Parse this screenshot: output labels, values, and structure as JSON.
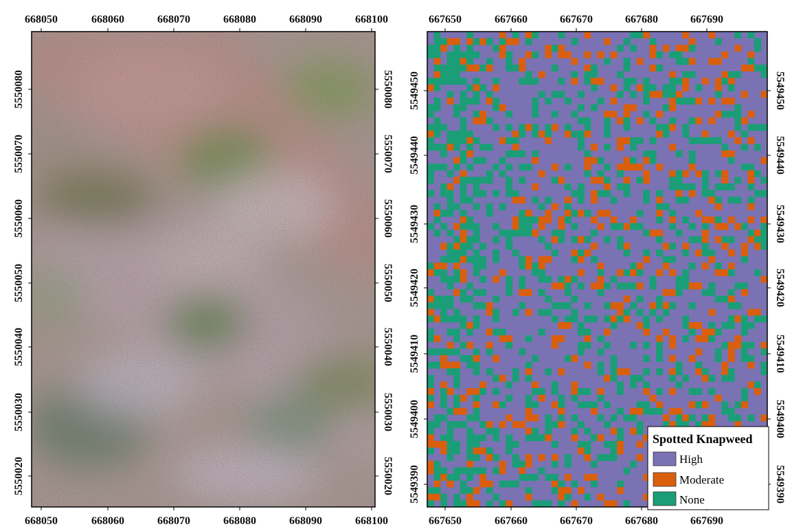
{
  "left_map": {
    "x_ticks": [
      "668050",
      "668060",
      "668070",
      "668080",
      "668090",
      "668100"
    ],
    "y_ticks": [
      "5550080",
      "5550070",
      "5550060",
      "5550050",
      "5550040",
      "5550030",
      "5550020"
    ]
  },
  "right_map": {
    "x_ticks": [
      "667650",
      "667660",
      "667670",
      "667680",
      "667690"
    ],
    "y_ticks": [
      "5549450",
      "5549440",
      "5549430",
      "5549420",
      "5549410",
      "5549400",
      "5549390"
    ],
    "legend": {
      "title": "Spotted Knapweed",
      "items": [
        {
          "label": "High",
          "color": "#7b72b4"
        },
        {
          "label": "Moderate",
          "color": "#d95f0e"
        },
        {
          "label": "None",
          "color": "#1b9e77"
        }
      ]
    },
    "class_shares": {
      "High": 0.64,
      "Moderate": 0.14,
      "None": 0.22
    }
  }
}
